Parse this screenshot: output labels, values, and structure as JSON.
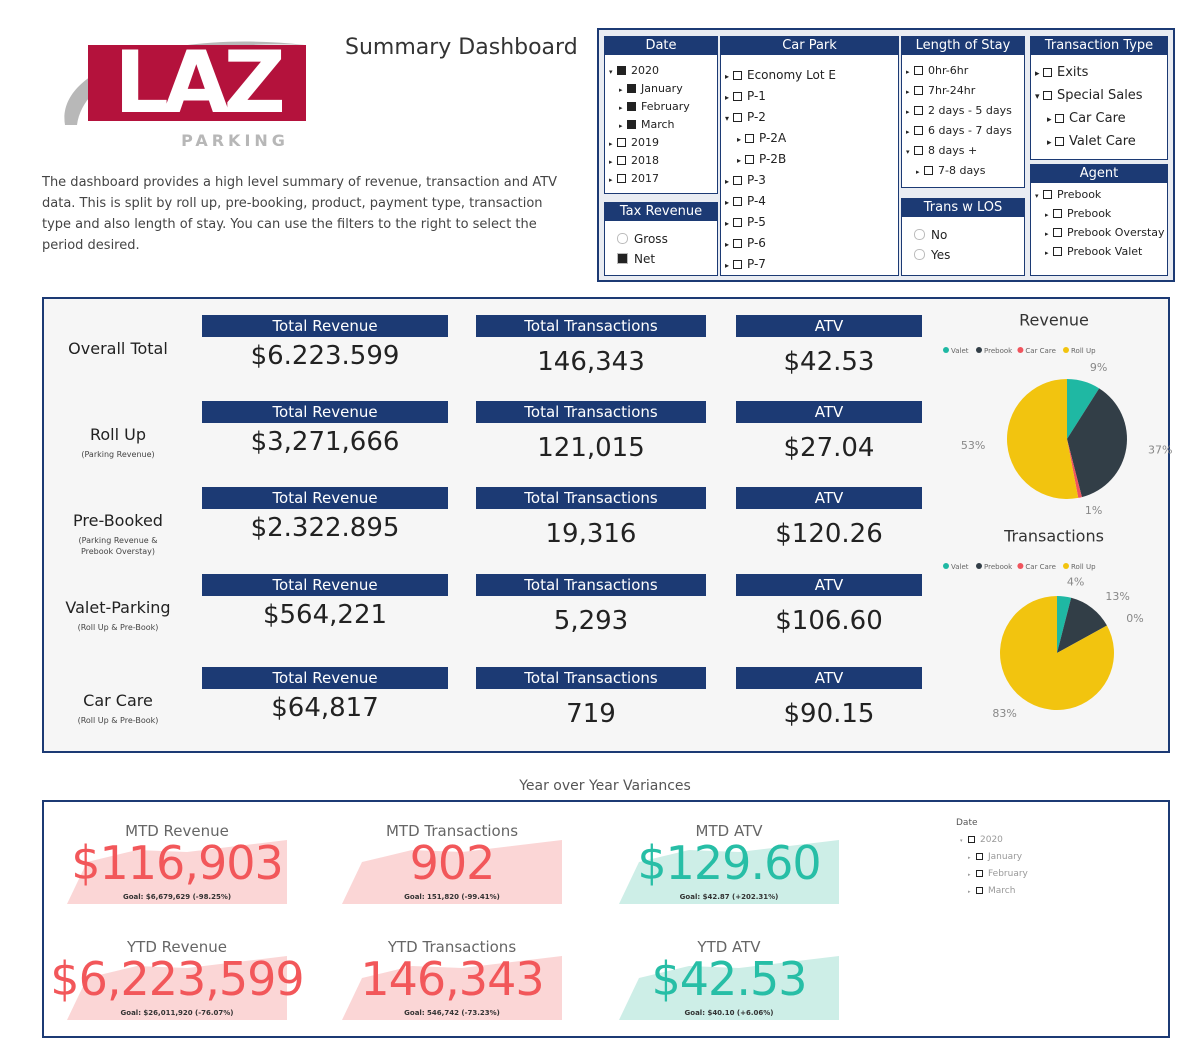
{
  "header": {
    "logo_main": "LAZ",
    "logo_sub": "PARKING",
    "title": "Summary Dashboard",
    "description": "The dashboard provides a high level summary of revenue, transaction and ATV data. This is split by roll up, pre-booking, product, payment type, transaction type and also length of stay. You can use the filters to the right to select the period desired."
  },
  "filters": {
    "date": {
      "title": "Date",
      "items": [
        {
          "label": "2020",
          "checked": true,
          "children": [
            {
              "label": "January",
              "checked": true
            },
            {
              "label": "February",
              "checked": true
            },
            {
              "label": "March",
              "checked": true
            }
          ]
        },
        {
          "label": "2019",
          "checked": false
        },
        {
          "label": "2018",
          "checked": false
        },
        {
          "label": "2017",
          "checked": false
        }
      ]
    },
    "tax_revenue": {
      "title": "Tax Revenue",
      "items": [
        {
          "label": "Gross",
          "checked": false
        },
        {
          "label": "Net",
          "checked": true
        }
      ]
    },
    "car_park": {
      "title": "Car Park",
      "items": [
        {
          "label": "Economy Lot E",
          "checked": false
        },
        {
          "label": "P-1",
          "checked": false
        },
        {
          "label": "P-2",
          "checked": false,
          "children": [
            {
              "label": "P-2A",
              "checked": false
            },
            {
              "label": "P-2B",
              "checked": false
            }
          ]
        },
        {
          "label": "P-3",
          "checked": false
        },
        {
          "label": "P-4",
          "checked": false
        },
        {
          "label": "P-5",
          "checked": false
        },
        {
          "label": "P-6",
          "checked": false
        },
        {
          "label": "P-7",
          "checked": false
        }
      ]
    },
    "length_of_stay": {
      "title": "Length of Stay",
      "items": [
        {
          "label": "0hr-6hr",
          "checked": false
        },
        {
          "label": "7hr-24hr",
          "checked": false
        },
        {
          "label": "2 days - 5 days",
          "checked": false
        },
        {
          "label": "6 days - 7 days",
          "checked": false
        },
        {
          "label": "8 days +",
          "checked": false,
          "children": [
            {
              "label": "7-8 days",
              "checked": false
            }
          ]
        }
      ]
    },
    "trans_w_los": {
      "title": "Trans w LOS",
      "items": [
        {
          "label": "No",
          "checked": false
        },
        {
          "label": "Yes",
          "checked": false
        }
      ]
    },
    "transaction_type": {
      "title": "Transaction Type",
      "items": [
        {
          "label": "Exits",
          "checked": false
        },
        {
          "label": "Special Sales",
          "checked": false,
          "children": [
            {
              "label": "Car Care",
              "checked": false
            },
            {
              "label": "Valet Care",
              "checked": false
            }
          ]
        }
      ]
    },
    "agent": {
      "title": "Agent",
      "items": [
        {
          "label": "Prebook",
          "checked": false,
          "children": [
            {
              "label": "Prebook",
              "checked": false
            },
            {
              "label": "Prebook Overstay",
              "checked": false
            },
            {
              "label": "Prebook Valet",
              "checked": false
            }
          ]
        }
      ]
    }
  },
  "kpis": {
    "rows": [
      {
        "label": "Overall Total",
        "cards": [
          {
            "title": "Total Revenue",
            "value": "$6.223.599"
          },
          {
            "title": "Total Transactions",
            "value": "146,343"
          },
          {
            "title": "ATV",
            "value": "$42.53"
          }
        ]
      },
      {
        "label": "Roll Up",
        "sublabel": "(Parking Revenue)",
        "cards": [
          {
            "title": "Total Revenue",
            "value": "$3,271,666"
          },
          {
            "title": "Total Transactions",
            "value": "121,015"
          },
          {
            "title": "ATV",
            "value": "$27.04"
          }
        ]
      },
      {
        "label": "Pre-Booked",
        "sublabel": "(Parking Revenue & Prebook Overstay)",
        "cards": [
          {
            "title": "Total Revenue",
            "value": "$2.322.895"
          },
          {
            "title": "Total Transactions",
            "value": "19,316"
          },
          {
            "title": "ATV",
            "value": "$120.26"
          }
        ]
      },
      {
        "label": "Valet-Parking",
        "sublabel": "(Roll Up & Pre-Book)",
        "cards": [
          {
            "title": "Total Revenue",
            "value": "$564,221"
          },
          {
            "title": "Total Transactions",
            "value": "5,293"
          },
          {
            "title": "ATV",
            "value": "$106.60"
          }
        ]
      },
      {
        "label": "Car Care",
        "sublabel": "(Roll Up & Pre-Book)",
        "cards": [
          {
            "title": "Total Revenue",
            "value": "$64,817"
          },
          {
            "title": "Total Transactions",
            "value": "719"
          },
          {
            "title": "ATV",
            "value": "$90.15"
          }
        ]
      }
    ]
  },
  "pies": [
    {
      "type": "pie",
      "title": "Revenue",
      "categories": [
        "Valet",
        "Prebook",
        "Car Care",
        "Roll Up"
      ],
      "colors": [
        "#1fb8a3",
        "#323e47",
        "#f0545d",
        "#f2c40f"
      ],
      "values": [
        9,
        37,
        1,
        53
      ],
      "value_labels": [
        "9%",
        "37%",
        "1%",
        "53%"
      ]
    },
    {
      "type": "pie",
      "title": "Transactions",
      "categories": [
        "Valet",
        "Prebook",
        "Car Care",
        "Roll Up"
      ],
      "colors": [
        "#1fb8a3",
        "#323e47",
        "#f0545d",
        "#f2c40f"
      ],
      "values": [
        4,
        13,
        0,
        83
      ],
      "value_labels": [
        "4%",
        "13%",
        "0%",
        "83%"
      ]
    }
  ],
  "yoy": {
    "title": "Year over Year Variances",
    "cards": [
      {
        "title": "MTD Revenue",
        "value": "$116,903",
        "goal": "Goal: $6,679,629 (-98.25%)",
        "status": "bad"
      },
      {
        "title": "MTD Transactions",
        "value": "902",
        "goal": "Goal: 151,820 (-99.41%)",
        "status": "bad"
      },
      {
        "title": "MTD ATV",
        "value": "$129.60",
        "goal": "Goal: $42.87 (+202.31%)",
        "status": "good"
      },
      {
        "title": "YTD Revenue",
        "value": "$6,223,599",
        "goal": "Goal: $26,011,920 (-76.07%)",
        "status": "bad"
      },
      {
        "title": "YTD Transactions",
        "value": "146,343",
        "goal": "Goal: 546,742 (-73.23%)",
        "status": "bad"
      },
      {
        "title": "YTD ATV",
        "value": "$42.53",
        "goal": "Goal: $40.10 (+6.06%)",
        "status": "good"
      }
    ],
    "date_filter": {
      "title": "Date",
      "items": [
        {
          "label": "2020",
          "checked": false,
          "children": [
            {
              "label": "January",
              "checked": false
            },
            {
              "label": "February",
              "checked": false
            },
            {
              "label": "March",
              "checked": false
            }
          ]
        }
      ]
    }
  }
}
